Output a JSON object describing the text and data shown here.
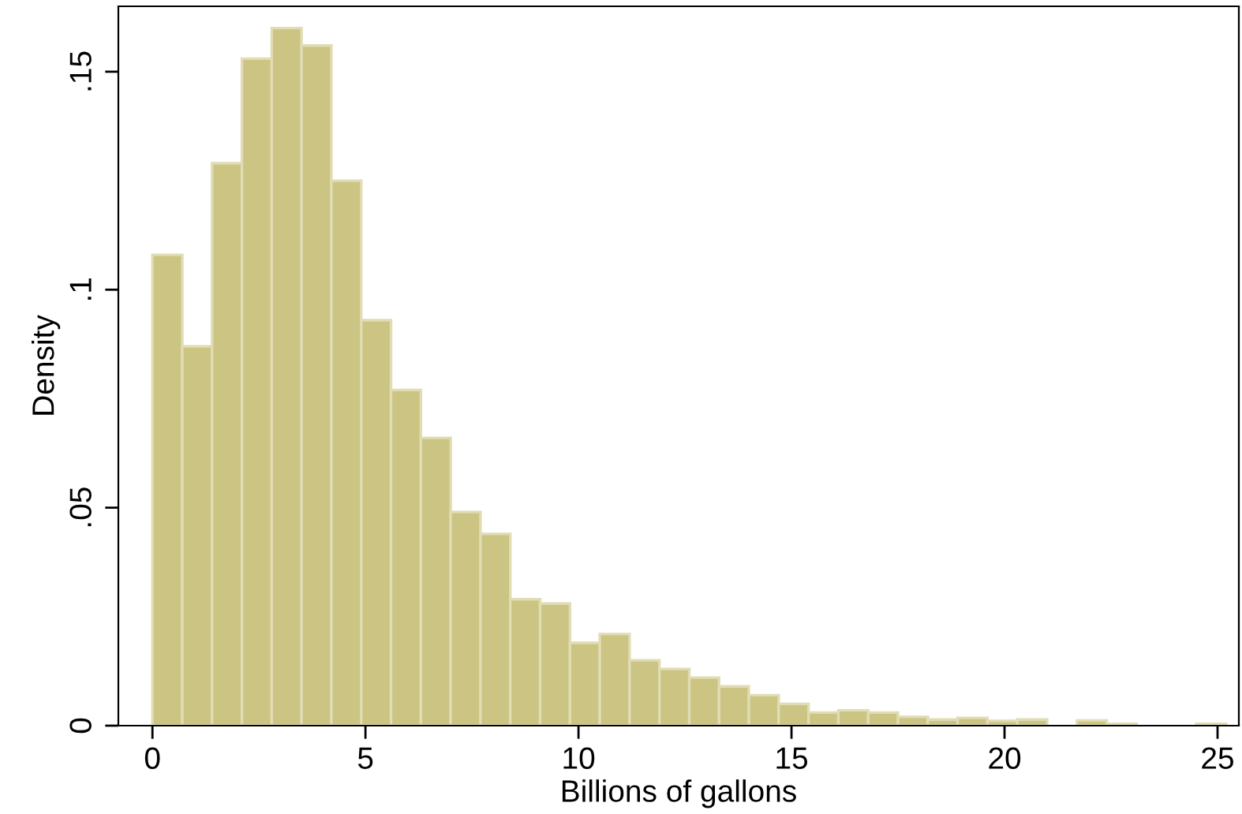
{
  "chart_data": {
    "type": "histogram",
    "xlabel": "Billions of gallons",
    "ylabel": "Density",
    "color": "#cbc482",
    "bins": [
      0,
      0.7,
      1.4,
      2.1,
      2.8,
      3.5,
      4.2,
      4.9,
      5.6,
      6.3,
      7.0,
      7.7,
      8.4,
      9.1,
      9.8,
      10.5,
      11.2,
      11.9,
      12.6,
      13.3,
      14.0,
      14.7,
      15.4,
      16.1,
      16.8,
      17.5,
      18.2,
      18.9,
      19.6,
      20.3,
      21.0,
      21.7,
      22.4,
      23.1,
      23.8,
      24.5,
      25.2
    ],
    "values": [
      0.108,
      0.087,
      0.129,
      0.153,
      0.16,
      0.156,
      0.125,
      0.093,
      0.077,
      0.066,
      0.049,
      0.044,
      0.029,
      0.028,
      0.019,
      0.021,
      0.015,
      0.013,
      0.011,
      0.009,
      0.007,
      0.005,
      0.003,
      0.0035,
      0.003,
      0.002,
      0.0014,
      0.0018,
      0.0011,
      0.0014,
      0,
      0.0012,
      0.0004,
      0,
      0,
      0.0004
    ],
    "xlim": [
      -0.8,
      25.5
    ],
    "ylim": [
      0,
      0.165
    ],
    "xticks": [
      0,
      5,
      10,
      15,
      20,
      25
    ],
    "yticks": [
      {
        "value": 0,
        "label": "0"
      },
      {
        "value": 0.05,
        "label": ".05"
      },
      {
        "value": 0.1,
        "label": ".1"
      },
      {
        "value": 0.15,
        "label": ".15"
      }
    ],
    "grid": false
  }
}
